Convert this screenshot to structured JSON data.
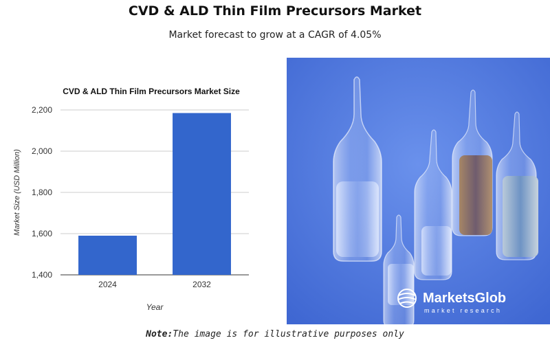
{
  "header": {
    "title": "CVD & ALD Thin Film Precursors Market",
    "subtitle": "Market forecast to grow at a CAGR of 4.05%"
  },
  "chart_data": {
    "type": "bar",
    "title": "CVD & ALD Thin Film Precursors Market Size",
    "xlabel": "Year",
    "ylabel": "Market Size (USD Million)",
    "categories": [
      "2024",
      "2032"
    ],
    "values": [
      1590,
      2185
    ],
    "ylim": [
      1400,
      2200
    ],
    "yticks": [
      1400,
      1600,
      1800,
      2000,
      2200
    ],
    "ytick_labels": [
      "1,400",
      "1,600",
      "1,800",
      "2,000",
      "2,200"
    ],
    "bar_color": "#3366cc",
    "grid": true
  },
  "image": {
    "logo_brand": "MarketsGlob",
    "logo_tagline": "market research",
    "background_color": "#4f7be0"
  },
  "footer": {
    "note_label": "Note:",
    "note_text": "The image is for illustrative purposes only"
  }
}
